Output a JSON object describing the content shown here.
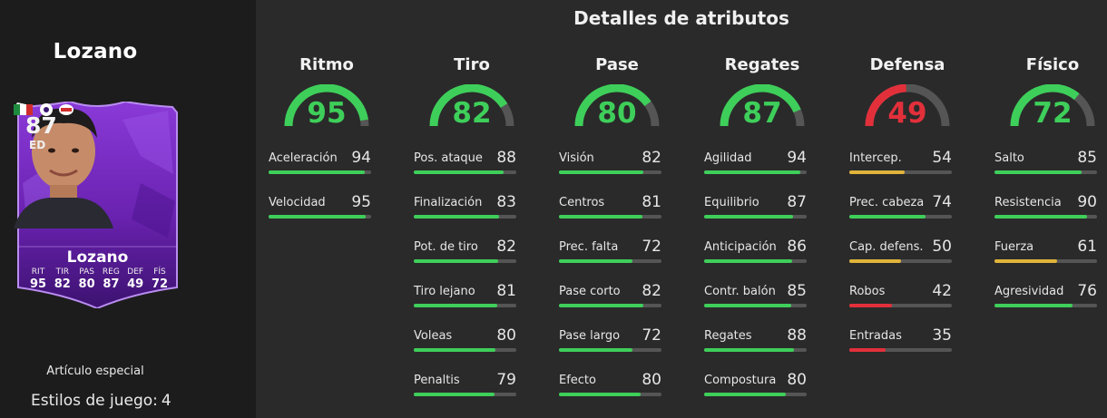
{
  "player": {
    "name": "Lozano",
    "card_rating": "87",
    "card_position": "ED",
    "card_name": "Lozano",
    "card_stats": [
      {
        "label": "RIT",
        "value": "95"
      },
      {
        "label": "TIR",
        "value": "82"
      },
      {
        "label": "PAS",
        "value": "80"
      },
      {
        "label": "REG",
        "value": "87"
      },
      {
        "label": "DEF",
        "value": "49"
      },
      {
        "label": "FÍS",
        "value": "72"
      }
    ],
    "special_label": "Artículo especial",
    "play_styles_label": "Estilos de juego:",
    "play_styles_count": "4"
  },
  "section_title": "Detalles de atributos",
  "colors": {
    "high": "#3ecf5a",
    "mid": "#e0b43a",
    "low": "#e2303b",
    "track": "#555555",
    "card_purple": "#7a2fc2"
  },
  "categories": [
    {
      "label": "Ritmo",
      "value": 95,
      "value_text": "95",
      "attributes": [
        {
          "name": "Aceleración",
          "value": 94,
          "value_text": "94"
        },
        {
          "name": "Velocidad",
          "value": 95,
          "value_text": "95"
        }
      ]
    },
    {
      "label": "Tiro",
      "value": 82,
      "value_text": "82",
      "attributes": [
        {
          "name": "Pos. ataque",
          "value": 88,
          "value_text": "88"
        },
        {
          "name": "Finalización",
          "value": 83,
          "value_text": "83"
        },
        {
          "name": "Pot. de tiro",
          "value": 82,
          "value_text": "82"
        },
        {
          "name": "Tiro lejano",
          "value": 81,
          "value_text": "81"
        },
        {
          "name": "Voleas",
          "value": 80,
          "value_text": "80"
        },
        {
          "name": "Penaltis",
          "value": 79,
          "value_text": "79"
        }
      ]
    },
    {
      "label": "Pase",
      "value": 80,
      "value_text": "80",
      "attributes": [
        {
          "name": "Visión",
          "value": 82,
          "value_text": "82"
        },
        {
          "name": "Centros",
          "value": 81,
          "value_text": "81"
        },
        {
          "name": "Prec. falta",
          "value": 72,
          "value_text": "72"
        },
        {
          "name": "Pase corto",
          "value": 82,
          "value_text": "82"
        },
        {
          "name": "Pase largo",
          "value": 72,
          "value_text": "72"
        },
        {
          "name": "Efecto",
          "value": 80,
          "value_text": "80"
        }
      ]
    },
    {
      "label": "Regates",
      "value": 87,
      "value_text": "87",
      "attributes": [
        {
          "name": "Agilidad",
          "value": 94,
          "value_text": "94"
        },
        {
          "name": "Equilibrio",
          "value": 87,
          "value_text": "87"
        },
        {
          "name": "Anticipación",
          "value": 86,
          "value_text": "86"
        },
        {
          "name": "Contr. balón",
          "value": 85,
          "value_text": "85"
        },
        {
          "name": "Regates",
          "value": 88,
          "value_text": "88"
        },
        {
          "name": "Compostura",
          "value": 80,
          "value_text": "80"
        }
      ]
    },
    {
      "label": "Defensa",
      "value": 49,
      "value_text": "49",
      "attributes": [
        {
          "name": "Intercep.",
          "value": 54,
          "value_text": "54"
        },
        {
          "name": "Prec. cabeza",
          "value": 74,
          "value_text": "74"
        },
        {
          "name": "Cap. defens.",
          "value": 50,
          "value_text": "50"
        },
        {
          "name": "Robos",
          "value": 42,
          "value_text": "42"
        },
        {
          "name": "Entradas",
          "value": 35,
          "value_text": "35"
        }
      ]
    },
    {
      "label": "Físico",
      "value": 72,
      "value_text": "72",
      "attributes": [
        {
          "name": "Salto",
          "value": 85,
          "value_text": "85"
        },
        {
          "name": "Resistencia",
          "value": 90,
          "value_text": "90"
        },
        {
          "name": "Fuerza",
          "value": 61,
          "value_text": "61"
        },
        {
          "name": "Agresividad",
          "value": 76,
          "value_text": "76"
        }
      ]
    }
  ]
}
